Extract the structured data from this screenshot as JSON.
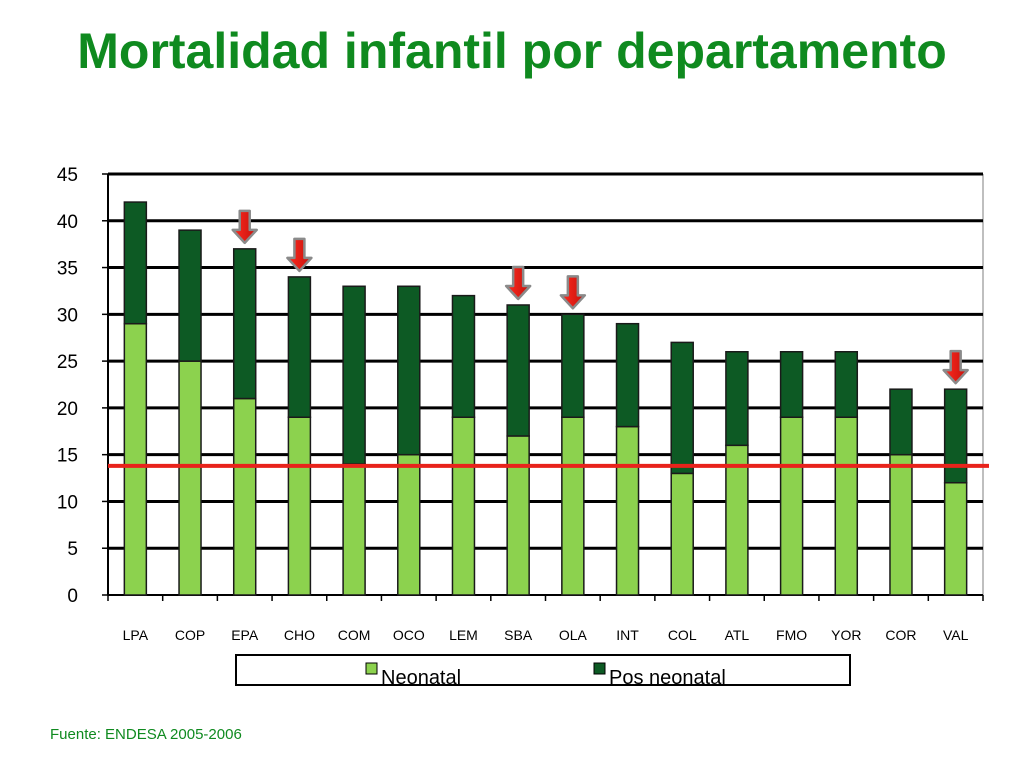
{
  "slide": {
    "title": "Mortalidad infantil por departamento",
    "source": "Fuente: ENDESA 2005-2006"
  },
  "colors": {
    "title": "#0f8a1f",
    "neonatal": "#8cd24e",
    "pos_neonatal": "#0d5a24",
    "reference_line": "#e8231b",
    "arrow_fill": "#e8231b",
    "arrow_outline": "#8a8a8a",
    "gridline": "#000000"
  },
  "chart_data": {
    "type": "bar",
    "stacked": true,
    "title": "",
    "xlabel": "",
    "ylabel": "",
    "categories": [
      "LPA",
      "COP",
      "EPA",
      "CHO",
      "COM",
      "OCO",
      "LEM",
      "SBA",
      "OLA",
      "INT",
      "COL",
      "ATL",
      "FMO",
      "YOR",
      "COR",
      "VAL"
    ],
    "series": [
      {
        "name": "Neonatal",
        "values": [
          29,
          25,
          21,
          19,
          14,
          15,
          19,
          17,
          19,
          18,
          13,
          16,
          19,
          19,
          15,
          12
        ]
      },
      {
        "name": "Pos neonatal",
        "values": [
          13,
          14,
          16,
          15,
          19,
          18,
          13,
          14,
          11,
          11,
          14,
          10,
          7,
          7,
          7,
          10
        ]
      }
    ],
    "ylim": [
      0,
      45
    ],
    "yticks": [
      0,
      5,
      10,
      15,
      20,
      25,
      30,
      35,
      40,
      45
    ],
    "grid": true,
    "legend_position": "bottom",
    "reference_line": {
      "y": 13.8
    },
    "highlighted_categories": [
      "EPA",
      "CHO",
      "SBA",
      "OLA",
      "VAL"
    ]
  }
}
